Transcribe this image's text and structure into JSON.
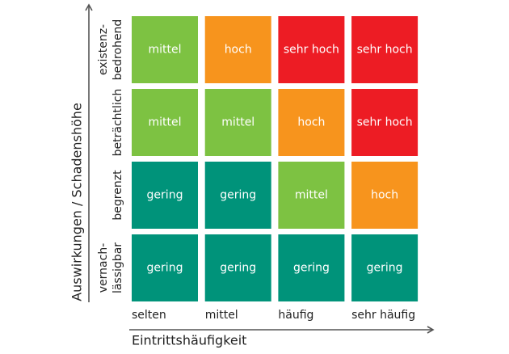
{
  "y_axis_label": "Auswirkungen / Schadenshöhe",
  "x_axis_label": "Eintrittshäufigkeit",
  "columns": [
    "selten",
    "mittel",
    "häufig",
    "sehr häufig"
  ],
  "rows": [
    {
      "label": [
        "existenz-",
        "bedrohend"
      ],
      "cells": [
        {
          "label": "mittel",
          "color": "#7dc242"
        },
        {
          "label": "hoch",
          "color": "#f7941d"
        },
        {
          "label": "sehr hoch",
          "color": "#ed1c24"
        },
        {
          "label": "sehr hoch",
          "color": "#ed1c24"
        }
      ]
    },
    {
      "label": [
        "beträchtlich"
      ],
      "cells": [
        {
          "label": "mittel",
          "color": "#7dc242"
        },
        {
          "label": "mittel",
          "color": "#7dc242"
        },
        {
          "label": "hoch",
          "color": "#f7941d"
        },
        {
          "label": "sehr hoch",
          "color": "#ed1c24"
        }
      ]
    },
    {
      "label": [
        "begrenzt"
      ],
      "cells": [
        {
          "label": "gering",
          "color": "#00937a"
        },
        {
          "label": "gering",
          "color": "#00937a"
        },
        {
          "label": "mittel",
          "color": "#7dc242"
        },
        {
          "label": "hoch",
          "color": "#f7941d"
        }
      ]
    },
    {
      "label": [
        "vernach-",
        "lässigbar"
      ],
      "cells": [
        {
          "label": "gering",
          "color": "#00937a"
        },
        {
          "label": "gering",
          "color": "#00937a"
        },
        {
          "label": "gering",
          "color": "#00937a"
        },
        {
          "label": "gering",
          "color": "#00937a"
        }
      ]
    }
  ]
}
